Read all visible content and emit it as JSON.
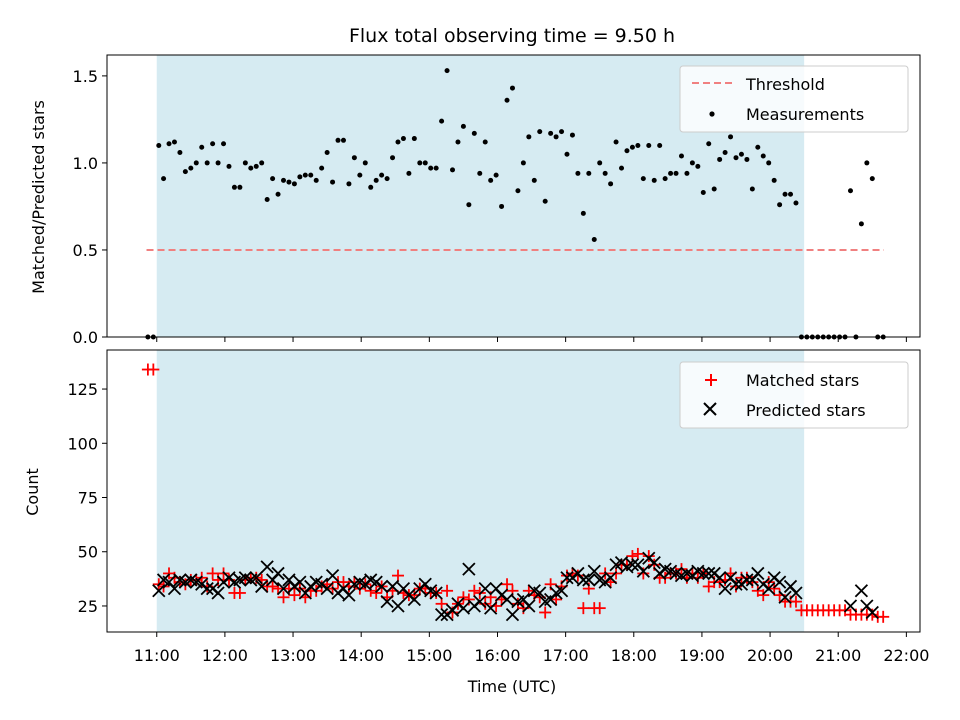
{
  "chart_data": [
    {
      "type": "scatter",
      "title": "Flux total observing time = 9.50 h",
      "xlabel": "",
      "ylabel": "Matched/Predicted stars",
      "xlim": [
        10.27,
        22.2
      ],
      "ylim": [
        0.0,
        1.62
      ],
      "yticks": [
        0.0,
        0.5,
        1.0,
        1.5
      ],
      "ytick_labels": [
        "0.0",
        "0.5",
        "1.0",
        "1.5"
      ],
      "xticks": [
        11,
        12,
        13,
        14,
        15,
        16,
        17,
        18,
        19,
        20,
        21,
        22
      ],
      "xtick_labels_shown": false,
      "observing_window": [
        11.0,
        20.5
      ],
      "legend_position": "top-right",
      "series": [
        {
          "name": "Threshold",
          "kind": "dashed-line",
          "color": "#f08080",
          "x": [
            10.85,
            21.67
          ],
          "y": [
            0.5,
            0.5
          ]
        },
        {
          "name": "Measurements",
          "kind": "points",
          "color": "#000000",
          "x": [
            10.87,
            10.95,
            11.03,
            11.1,
            11.18,
            11.26,
            11.34,
            11.42,
            11.5,
            11.58,
            11.66,
            11.74,
            11.82,
            11.9,
            11.98,
            12.06,
            12.14,
            12.22,
            12.3,
            12.38,
            12.46,
            12.54,
            12.62,
            12.7,
            12.78,
            12.86,
            12.94,
            13.02,
            13.1,
            13.18,
            13.26,
            13.34,
            13.42,
            13.5,
            13.58,
            13.66,
            13.74,
            13.82,
            13.9,
            13.98,
            14.06,
            14.14,
            14.22,
            14.3,
            14.38,
            14.46,
            14.54,
            14.62,
            14.7,
            14.78,
            14.86,
            14.94,
            15.02,
            15.1,
            15.18,
            15.26,
            15.34,
            15.42,
            15.5,
            15.58,
            15.66,
            15.74,
            15.82,
            15.9,
            15.98,
            16.06,
            16.14,
            16.22,
            16.3,
            16.38,
            16.46,
            16.54,
            16.62,
            16.7,
            16.78,
            16.86,
            16.94,
            17.02,
            17.1,
            17.18,
            17.26,
            17.34,
            17.42,
            17.5,
            17.58,
            17.66,
            17.74,
            17.82,
            17.9,
            17.98,
            18.06,
            18.14,
            18.22,
            18.3,
            18.38,
            18.46,
            18.54,
            18.62,
            18.7,
            18.78,
            18.86,
            18.94,
            19.02,
            19.1,
            19.18,
            19.26,
            19.34,
            19.42,
            19.5,
            19.58,
            19.66,
            19.74,
            19.82,
            19.9,
            19.98,
            20.06,
            20.14,
            20.22,
            20.3,
            20.38,
            20.46,
            20.54,
            20.62,
            20.7,
            20.78,
            20.86,
            20.94,
            21.02,
            21.1,
            21.18,
            21.26,
            21.34,
            21.42,
            21.5,
            21.58,
            21.66
          ],
          "y": [
            0.0,
            0.0,
            1.1,
            0.91,
            1.11,
            1.12,
            1.06,
            0.95,
            0.97,
            1.0,
            1.09,
            1.0,
            1.11,
            1.0,
            1.11,
            0.98,
            0.86,
            0.86,
            1.0,
            0.97,
            0.98,
            1.0,
            0.79,
            0.91,
            0.82,
            0.9,
            0.89,
            0.88,
            0.92,
            0.93,
            0.93,
            0.9,
            0.97,
            1.06,
            0.89,
            1.13,
            1.13,
            0.88,
            1.03,
            0.93,
            1.0,
            0.86,
            0.9,
            0.93,
            0.91,
            1.03,
            1.12,
            1.14,
            0.94,
            1.14,
            1.0,
            1.0,
            0.97,
            0.97,
            1.24,
            1.53,
            0.96,
            1.12,
            1.21,
            0.76,
            1.17,
            0.94,
            1.12,
            0.9,
            0.93,
            0.75,
            1.36,
            1.43,
            0.84,
            1.0,
            1.15,
            0.9,
            1.18,
            0.78,
            1.17,
            1.15,
            1.18,
            1.05,
            1.16,
            0.94,
            0.71,
            0.94,
            0.56,
            1.0,
            0.94,
            0.88,
            1.12,
            0.97,
            1.07,
            1.09,
            1.1,
            0.91,
            1.1,
            0.9,
            1.1,
            0.91,
            0.94,
            0.94,
            1.04,
            0.94,
            1.0,
            0.98,
            0.83,
            1.11,
            0.85,
            1.02,
            1.06,
            1.15,
            1.03,
            1.05,
            1.02,
            0.85,
            1.09,
            1.04,
            1.0,
            0.9,
            0.76,
            0.82,
            0.82,
            0.77,
            0.0,
            0.0,
            0.0,
            0.0,
            0.0,
            0.0,
            0.0,
            0.0,
            0.0,
            0.84,
            0.0,
            0.65,
            1.0,
            0.91,
            0.0,
            0.0
          ]
        }
      ]
    },
    {
      "type": "scatter",
      "title": "",
      "xlabel": "Time (UTC)",
      "ylabel": "Count",
      "xlim": [
        10.27,
        22.2
      ],
      "ylim": [
        13.0,
        143.0
      ],
      "yticks": [
        25,
        50,
        75,
        100,
        125
      ],
      "ytick_labels": [
        "25",
        "50",
        "75",
        "100",
        "125"
      ],
      "xticks": [
        11,
        12,
        13,
        14,
        15,
        16,
        17,
        18,
        19,
        20,
        21,
        22
      ],
      "xtick_labels": [
        "11:00",
        "12:00",
        "13:00",
        "14:00",
        "15:00",
        "16:00",
        "17:00",
        "18:00",
        "19:00",
        "20:00",
        "21:00",
        "22:00"
      ],
      "observing_window": [
        11.0,
        20.5
      ],
      "legend_position": "top-right",
      "series": [
        {
          "name": "Matched stars",
          "kind": "plus",
          "color": "#ff0000",
          "x": [
            10.87,
            10.95,
            11.03,
            11.1,
            11.18,
            11.26,
            11.34,
            11.42,
            11.5,
            11.58,
            11.66,
            11.74,
            11.82,
            11.9,
            11.98,
            12.06,
            12.14,
            12.22,
            12.3,
            12.38,
            12.46,
            12.54,
            12.62,
            12.7,
            12.78,
            12.86,
            12.94,
            13.02,
            13.1,
            13.18,
            13.26,
            13.34,
            13.42,
            13.5,
            13.58,
            13.66,
            13.74,
            13.82,
            13.9,
            13.98,
            14.06,
            14.14,
            14.22,
            14.3,
            14.38,
            14.46,
            14.54,
            14.62,
            14.7,
            14.78,
            14.86,
            14.94,
            15.02,
            15.1,
            15.18,
            15.26,
            15.34,
            15.42,
            15.5,
            15.58,
            15.66,
            15.74,
            15.82,
            15.9,
            15.98,
            16.06,
            16.14,
            16.22,
            16.3,
            16.38,
            16.46,
            16.54,
            16.62,
            16.7,
            16.78,
            16.86,
            16.94,
            17.02,
            17.1,
            17.18,
            17.26,
            17.34,
            17.42,
            17.5,
            17.58,
            17.66,
            17.74,
            17.82,
            17.9,
            17.98,
            18.06,
            18.14,
            18.22,
            18.3,
            18.38,
            18.46,
            18.54,
            18.62,
            18.7,
            18.78,
            18.86,
            18.94,
            19.02,
            19.1,
            19.18,
            19.26,
            19.34,
            19.42,
            19.5,
            19.58,
            19.66,
            19.74,
            19.82,
            19.9,
            19.98,
            20.06,
            20.14,
            20.22,
            20.3,
            20.38,
            20.46,
            20.54,
            20.62,
            20.7,
            20.78,
            20.86,
            20.94,
            21.02,
            21.1,
            21.18,
            21.26,
            21.34,
            21.42,
            21.5,
            21.58,
            21.66
          ],
          "y": [
            134,
            134,
            35,
            34,
            40,
            38,
            36,
            35,
            37,
            37,
            38,
            34,
            40,
            37,
            40,
            37,
            31,
            31,
            37,
            38,
            38,
            37,
            34,
            34,
            33,
            29,
            33,
            30,
            33,
            29,
            32,
            32,
            34,
            35,
            33,
            36,
            36,
            34,
            36,
            33,
            35,
            32,
            31,
            34,
            29,
            32,
            39,
            31,
            30,
            30,
            33,
            33,
            31,
            31,
            26,
            32,
            22,
            26,
            29,
            28,
            32,
            31,
            26,
            29,
            25,
            28,
            35,
            32,
            26,
            24,
            32,
            30,
            29,
            22,
            35,
            28,
            34,
            39,
            40,
            39,
            24,
            33,
            24,
            24,
            40,
            36,
            40,
            44,
            44,
            48,
            49,
            40,
            48,
            44,
            38,
            38,
            40,
            40,
            42,
            38,
            40,
            38,
            40,
            34,
            36,
            36,
            37,
            40,
            34,
            38,
            38,
            36,
            32,
            30,
            36,
            33,
            30,
            27,
            27,
            27,
            23,
            23,
            23,
            23,
            23,
            23,
            23,
            23,
            23,
            21,
            21,
            21,
            21,
            21,
            20,
            20
          ]
        },
        {
          "name": "Predicted stars",
          "kind": "cross",
          "color": "#000000",
          "x": [
            11.03,
            11.1,
            11.18,
            11.26,
            11.34,
            11.42,
            11.5,
            11.58,
            11.66,
            11.74,
            11.82,
            11.9,
            11.98,
            12.06,
            12.14,
            12.22,
            12.3,
            12.38,
            12.46,
            12.54,
            12.62,
            12.7,
            12.78,
            12.86,
            12.94,
            13.02,
            13.1,
            13.18,
            13.26,
            13.34,
            13.42,
            13.5,
            13.58,
            13.66,
            13.74,
            13.82,
            13.9,
            13.98,
            14.06,
            14.14,
            14.22,
            14.3,
            14.38,
            14.46,
            14.54,
            14.62,
            14.7,
            14.78,
            14.86,
            14.94,
            15.02,
            15.1,
            15.18,
            15.26,
            15.34,
            15.42,
            15.5,
            15.58,
            15.66,
            15.74,
            15.82,
            15.9,
            15.98,
            16.06,
            16.14,
            16.22,
            16.3,
            16.38,
            16.46,
            16.54,
            16.62,
            16.7,
            16.78,
            16.86,
            16.94,
            17.02,
            17.1,
            17.18,
            17.26,
            17.34,
            17.42,
            17.5,
            17.58,
            17.66,
            17.74,
            17.82,
            17.9,
            17.98,
            18.06,
            18.14,
            18.22,
            18.3,
            18.38,
            18.46,
            18.54,
            18.62,
            18.7,
            18.78,
            18.86,
            18.94,
            19.02,
            19.1,
            19.18,
            19.26,
            19.34,
            19.42,
            19.5,
            19.58,
            19.66,
            19.74,
            19.82,
            19.9,
            19.98,
            20.06,
            20.14,
            20.22,
            20.3,
            20.38,
            21.18,
            21.34,
            21.42,
            21.5
          ],
          "y": [
            32,
            37,
            36,
            33,
            37,
            36,
            37,
            36,
            35,
            33,
            33,
            31,
            36,
            38,
            36,
            37,
            38,
            37,
            38,
            34,
            43,
            37,
            40,
            33,
            37,
            34,
            36,
            31,
            34,
            36,
            35,
            33,
            39,
            31,
            33,
            30,
            35,
            36,
            35,
            37,
            36,
            34,
            27,
            34,
            25,
            33,
            30,
            28,
            33,
            35,
            32,
            31,
            21,
            21,
            23,
            26,
            24,
            42,
            25,
            27,
            33,
            24,
            33,
            30,
            28,
            21,
            27,
            28,
            25,
            32,
            31,
            27,
            28,
            31,
            32,
            38,
            38,
            40,
            37,
            37,
            41,
            37,
            36,
            38,
            44,
            45,
            43,
            44,
            44,
            41,
            47,
            45,
            40,
            42,
            41,
            40,
            39,
            40,
            39,
            41,
            40,
            40,
            40,
            38,
            33,
            38,
            35,
            35,
            37,
            37,
            40,
            35,
            33,
            38,
            36,
            29,
            34,
            31,
            25,
            32,
            25,
            22
          ]
        }
      ]
    }
  ]
}
